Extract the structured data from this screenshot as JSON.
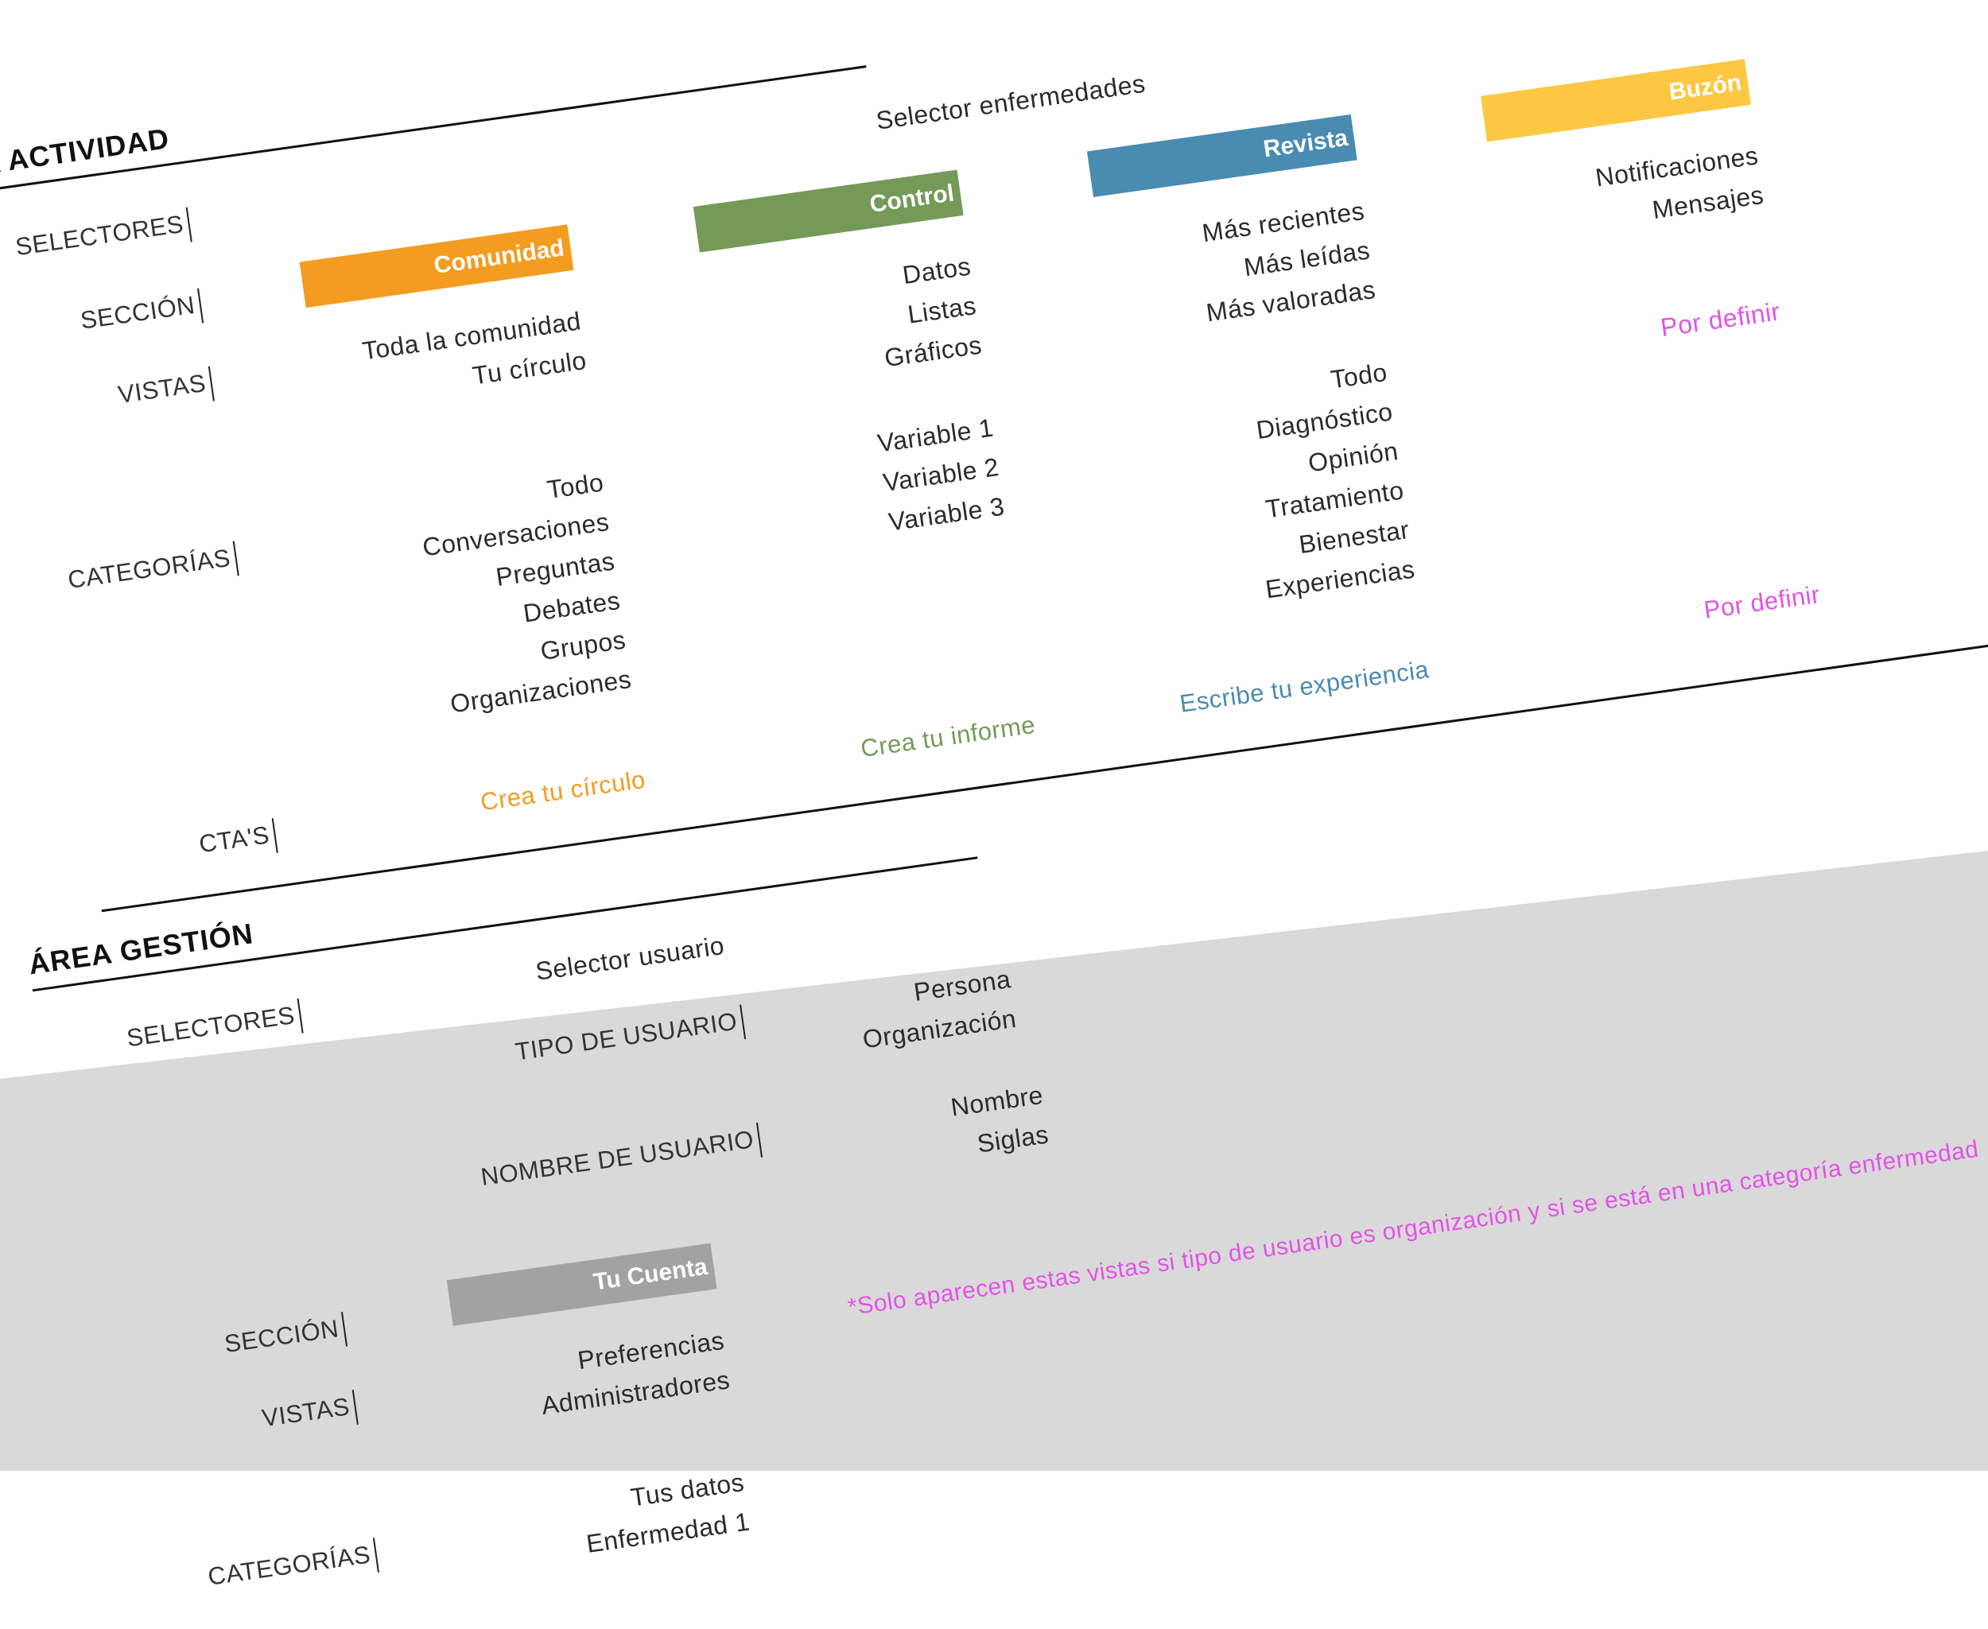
{
  "colors": {
    "comunidad": "#f39c1f",
    "control": "#749a58",
    "revista": "#4a8bb1",
    "buzon": "#fcc843",
    "cuenta": "#a2a2a2",
    "magenta": "#e353e6",
    "gray_area": "#d9d9d9"
  },
  "actividad": {
    "title": "ÁREA ACTIVIDAD",
    "labels": {
      "selectores": "SELECTORES",
      "seccion": "SECCIÓN",
      "vistas": "VISTAS",
      "categorias": "CATEGORÍAS",
      "ctas": "CTA'S"
    },
    "selector_enfermedades": "Selector enfermedades",
    "comunidad": {
      "tag": "Comunidad",
      "vistas": [
        "Toda la comunidad",
        "Tu círculo"
      ],
      "categorias": [
        "Todo",
        "Conversaciones",
        "Preguntas",
        "Debates",
        "Grupos",
        "Organizaciones"
      ],
      "cta": "Crea tu círculo"
    },
    "control": {
      "tag": "Control",
      "vistas": [
        "Datos",
        "Listas",
        "Gráficos"
      ],
      "categorias": [
        "Variable 1",
        "Variable 2",
        "Variable 3"
      ],
      "cta": "Crea tu informe"
    },
    "revista": {
      "tag": "Revista",
      "vistas": [
        "Más recientes",
        "Más leídas",
        "Más valoradas"
      ],
      "categorias": [
        "Todo",
        "Diagnóstico",
        "Opinión",
        "Tratamiento",
        "Bienestar",
        "Experiencias"
      ],
      "cta": "Escribe tu experiencia"
    },
    "buzon": {
      "tag": "Buzón",
      "vistas": [
        "Notificaciones",
        "Mensajes"
      ],
      "categorias_note": "Por definir",
      "cta_note": "Por definir"
    }
  },
  "gestion": {
    "title": "ÁREA GESTIÓN",
    "labels": {
      "selectores": "SELECTORES",
      "tipo_usuario": "TIPO DE USUARIO",
      "nombre_usuario": "NOMBRE DE USUARIO",
      "seccion": "SECCIÓN",
      "vistas": "VISTAS",
      "categorias": "CATEGORÍAS"
    },
    "selector_usuario": "Selector usuario",
    "tipo_options": [
      "Persona",
      "Organización"
    ],
    "nombre_options": [
      "Nombre",
      "Siglas"
    ],
    "cuenta": {
      "tag": "Tu Cuenta",
      "vistas": [
        "Preferencias",
        "Administradores"
      ],
      "categorias": [
        "Tus datos",
        "Enfermedad 1"
      ]
    },
    "note": "*Solo aparecen estas vistas si tipo de usuario es organización y si se está en una categoría enfermedad"
  }
}
